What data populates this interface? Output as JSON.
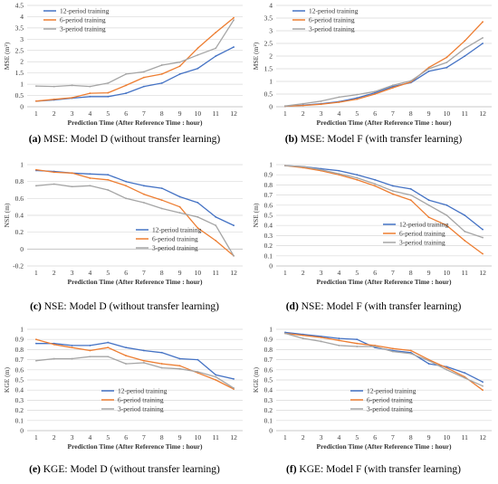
{
  "colors": {
    "12-period training": "#4472C4",
    "6-period training": "#ED7D31",
    "3-period training": "#A5A5A5",
    "grid": "#D9D9D9"
  },
  "chart_data": [
    {
      "id": "a",
      "type": "line",
      "caption_letter": "(a)",
      "caption_text": " MSE: Model D (without transfer learning)",
      "xlabel": "Prediction Time (After Reference Time : hour)",
      "ylabel": "MSE (m²)",
      "x": [
        1,
        2,
        3,
        4,
        5,
        6,
        7,
        8,
        9,
        10,
        11,
        12
      ],
      "ylim": [
        0,
        4.5
      ],
      "ytick_step": 0.5,
      "ytick_labels": [
        "0",
        "0.5",
        "1",
        "1.5",
        "2",
        "2.5",
        "3",
        "3.5",
        "4",
        "4.5"
      ],
      "grid": true,
      "legend_position": "top-left",
      "series": [
        {
          "name": "12-period training",
          "values": [
            0.25,
            0.3,
            0.38,
            0.45,
            0.45,
            0.6,
            0.9,
            1.05,
            1.45,
            1.7,
            2.25,
            2.65
          ]
        },
        {
          "name": "6-period training",
          "values": [
            0.25,
            0.33,
            0.4,
            0.6,
            0.62,
            0.95,
            1.3,
            1.45,
            1.8,
            2.6,
            3.3,
            3.95
          ]
        },
        {
          "name": "3-period training",
          "values": [
            0.92,
            0.9,
            0.95,
            0.9,
            1.05,
            1.45,
            1.55,
            1.85,
            1.98,
            2.3,
            2.6,
            3.85
          ]
        }
      ]
    },
    {
      "id": "b",
      "type": "line",
      "caption_letter": "(b)",
      "caption_text": " MSE: Model F (with transfer learning)",
      "xlabel": "Prediction Time (After Reference Time : hour)",
      "ylabel": "MSE (m²)",
      "x": [
        1,
        2,
        3,
        4,
        5,
        6,
        7,
        8,
        9,
        10,
        11,
        12
      ],
      "ylim": [
        0,
        4
      ],
      "ytick_step": 0.5,
      "ytick_labels": [
        "0",
        "0.5",
        "1",
        "1.5",
        "2",
        "2.5",
        "3",
        "3.5",
        "4"
      ],
      "grid": true,
      "legend_position": "top-left",
      "series": [
        {
          "name": "12-period training",
          "values": [
            0.02,
            0.06,
            0.12,
            0.2,
            0.35,
            0.55,
            0.8,
            0.95,
            1.4,
            1.55,
            2.0,
            2.5
          ]
        },
        {
          "name": "6-period training",
          "values": [
            0.02,
            0.05,
            0.1,
            0.18,
            0.3,
            0.5,
            0.75,
            0.98,
            1.55,
            1.95,
            2.6,
            3.35
          ]
        },
        {
          "name": "3-period training",
          "values": [
            0.03,
            0.12,
            0.22,
            0.38,
            0.48,
            0.6,
            0.85,
            1.02,
            1.5,
            1.75,
            2.3,
            2.72
          ]
        }
      ]
    },
    {
      "id": "c",
      "type": "line",
      "caption_letter": "(c)",
      "caption_text": " NSE: Model D (without transfer learning)",
      "xlabel": "Prediction Time (After Reference Time : hour)",
      "ylabel": "NSE (m)",
      "x": [
        1,
        2,
        3,
        4,
        5,
        6,
        7,
        8,
        9,
        10,
        11,
        12
      ],
      "ylim": [
        -0.2,
        1
      ],
      "ytick_step": 0.2,
      "ytick_labels": [
        "-0.2",
        "0",
        "0.2",
        "0.4",
        "0.6",
        "0.8",
        "1"
      ],
      "grid": true,
      "legend_position": "center",
      "series": [
        {
          "name": "12-period training",
          "values": [
            0.93,
            0.92,
            0.9,
            0.89,
            0.88,
            0.8,
            0.75,
            0.72,
            0.62,
            0.55,
            0.38,
            0.28
          ]
        },
        {
          "name": "6-period training",
          "values": [
            0.94,
            0.91,
            0.9,
            0.84,
            0.82,
            0.75,
            0.65,
            0.58,
            0.5,
            0.25,
            0.1,
            -0.08
          ]
        },
        {
          "name": "3-period training",
          "values": [
            0.75,
            0.77,
            0.74,
            0.75,
            0.7,
            0.6,
            0.55,
            0.48,
            0.43,
            0.38,
            0.28,
            -0.08
          ]
        }
      ]
    },
    {
      "id": "d",
      "type": "line",
      "caption_letter": "(d)",
      "caption_text": " NSE: Model F (with transfer learning)",
      "xlabel": "Prediction Time (After Reference Time : hour)",
      "ylabel": "NSE (m)",
      "x": [
        1,
        2,
        3,
        4,
        5,
        6,
        7,
        8,
        9,
        10,
        11,
        12
      ],
      "ylim": [
        0,
        1
      ],
      "ytick_step": 0.1,
      "ytick_labels": [
        "0",
        "0.1",
        "0.2",
        "0.3",
        "0.4",
        "0.5",
        "0.6",
        "0.7",
        "0.8",
        "0.9",
        "1"
      ],
      "grid": true,
      "legend_position": "bottom-left",
      "series": [
        {
          "name": "12-period training",
          "values": [
            0.99,
            0.98,
            0.96,
            0.94,
            0.9,
            0.85,
            0.79,
            0.76,
            0.65,
            0.6,
            0.5,
            0.36
          ]
        },
        {
          "name": "6-period training",
          "values": [
            0.99,
            0.97,
            0.94,
            0.9,
            0.85,
            0.79,
            0.71,
            0.65,
            0.48,
            0.4,
            0.25,
            0.12
          ]
        },
        {
          "name": "3-period training",
          "values": [
            0.99,
            0.98,
            0.95,
            0.91,
            0.87,
            0.81,
            0.74,
            0.7,
            0.6,
            0.5,
            0.34,
            0.28
          ]
        }
      ]
    },
    {
      "id": "e",
      "type": "line",
      "caption_letter": "(e)",
      "caption_text": " KGE: Model D (without transfer learning)",
      "xlabel": "Prediction Time (After Reference Time : hour)",
      "ylabel": "KGE (m)",
      "x": [
        1,
        2,
        3,
        4,
        5,
        6,
        7,
        8,
        9,
        10,
        11,
        12
      ],
      "ylim": [
        0,
        1
      ],
      "ytick_step": 0.1,
      "ytick_labels": [
        "0",
        "0.1",
        "0.2",
        "0.3",
        "0.4",
        "0.5",
        "0.6",
        "0.7",
        "0.8",
        "0.9",
        "1"
      ],
      "grid": true,
      "legend_position": "bottom-center",
      "series": [
        {
          "name": "12-period training",
          "values": [
            0.86,
            0.86,
            0.84,
            0.84,
            0.87,
            0.82,
            0.79,
            0.77,
            0.71,
            0.7,
            0.55,
            0.51
          ]
        },
        {
          "name": "6-period training",
          "values": [
            0.9,
            0.85,
            0.82,
            0.79,
            0.82,
            0.74,
            0.69,
            0.66,
            0.64,
            0.57,
            0.5,
            0.41
          ]
        },
        {
          "name": "3-period training",
          "values": [
            0.69,
            0.71,
            0.71,
            0.73,
            0.73,
            0.66,
            0.67,
            0.62,
            0.61,
            0.58,
            0.53,
            0.42
          ]
        }
      ]
    },
    {
      "id": "f",
      "type": "line",
      "caption_letter": "(f)",
      "caption_text": " KGE: Model F (with transfer learning)",
      "xlabel": "Prediction Time (After Reference Time : hour)",
      "ylabel": "KGE (m)",
      "x": [
        1,
        2,
        3,
        4,
        5,
        6,
        7,
        8,
        9,
        10,
        11,
        12
      ],
      "ylim": [
        0,
        1
      ],
      "ytick_step": 0.1,
      "ytick_labels": [
        "0",
        "0.1",
        "0.2",
        "0.3",
        "0.4",
        "0.5",
        "0.6",
        "0.7",
        "0.8",
        "0.9",
        "1"
      ],
      "grid": true,
      "legend_position": "bottom-center",
      "series": [
        {
          "name": "12-period training",
          "values": [
            0.97,
            0.95,
            0.93,
            0.91,
            0.9,
            0.82,
            0.79,
            0.77,
            0.66,
            0.63,
            0.57,
            0.48
          ]
        },
        {
          "name": "6-period training",
          "values": [
            0.96,
            0.94,
            0.92,
            0.89,
            0.86,
            0.84,
            0.81,
            0.79,
            0.7,
            0.62,
            0.53,
            0.4
          ]
        },
        {
          "name": "3-period training",
          "values": [
            0.96,
            0.91,
            0.88,
            0.84,
            0.83,
            0.83,
            0.78,
            0.76,
            0.69,
            0.6,
            0.52,
            0.44
          ]
        }
      ]
    }
  ]
}
